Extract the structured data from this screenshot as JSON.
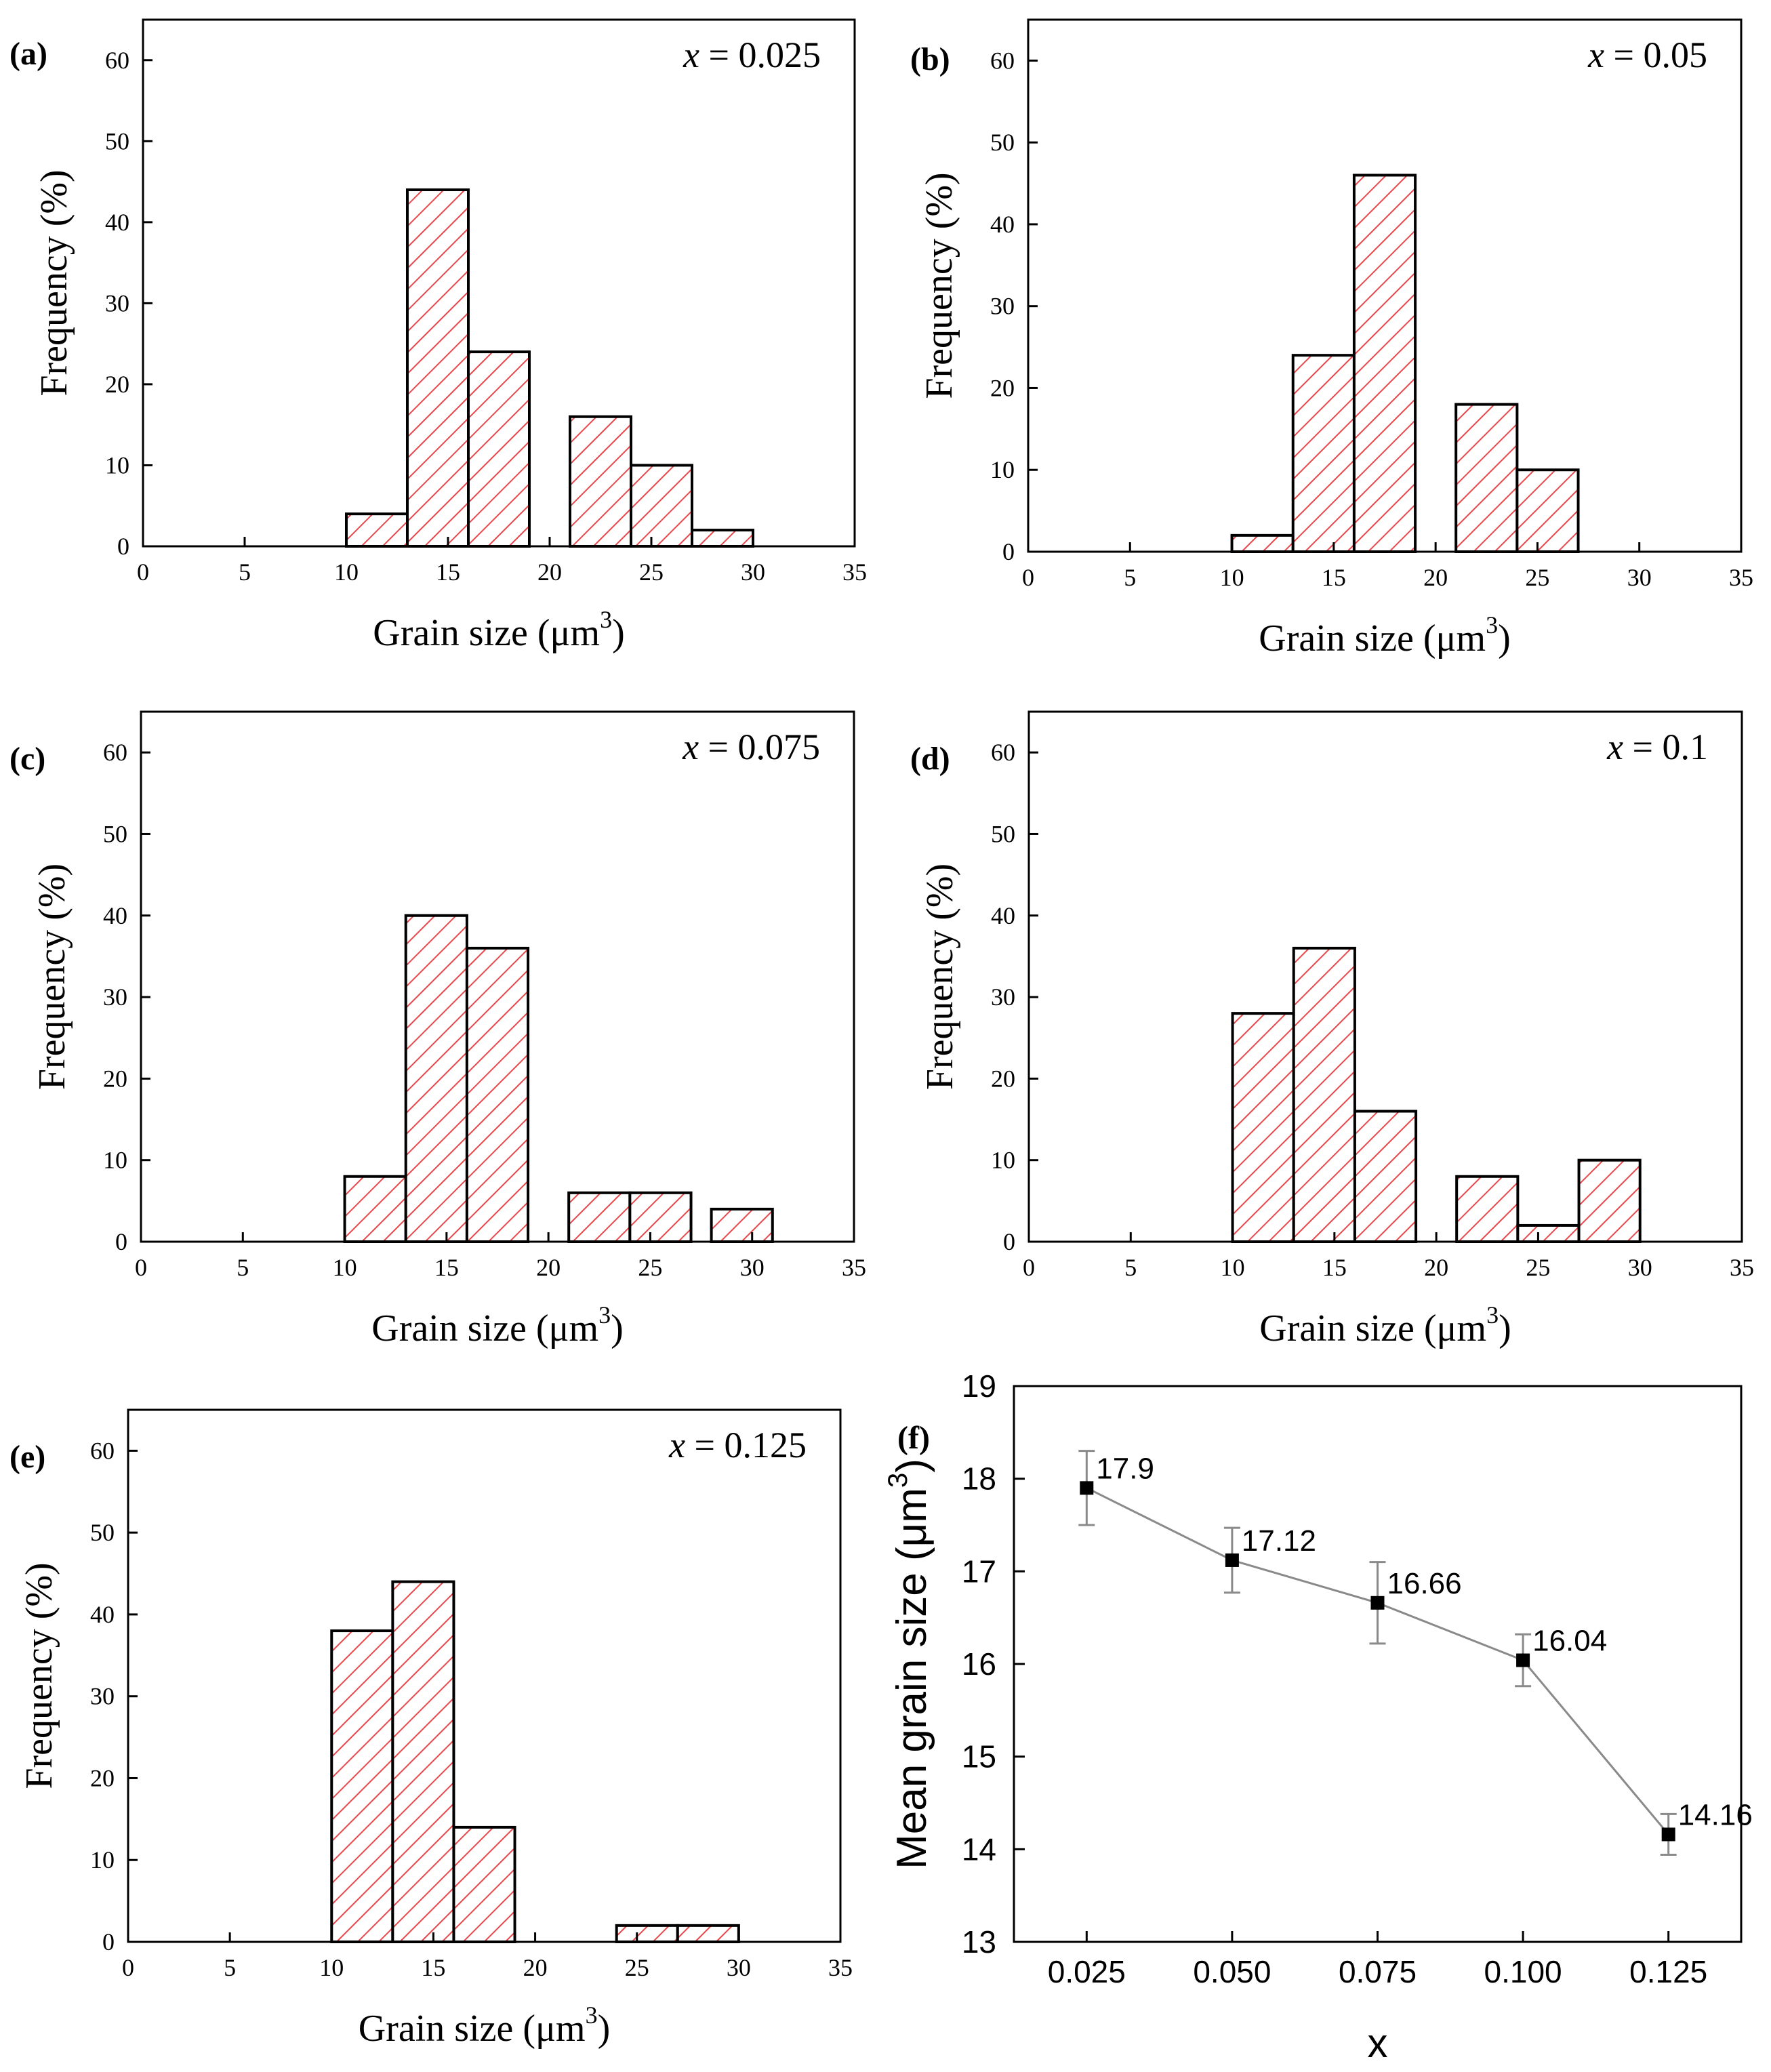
{
  "colors": {
    "bar_edge": "#000000",
    "hatch": "#e8474c",
    "axis": "#000000",
    "line": "#8a8a8a",
    "marker": "#000000"
  },
  "histogram_common": {
    "xlabel_prefix": "Grain size (",
    "xlabel_unit": "μm",
    "xlabel_sup": "3",
    "xlabel_suffix": ")",
    "ylabel": "Frequency (%)"
  },
  "chart_data": [
    {
      "panel": "(a)",
      "type": "bar",
      "annotation_var": "x",
      "annotation_rest": " = 0.025",
      "xlim": [
        0,
        35
      ],
      "ylim": [
        0,
        65
      ],
      "x_ticks": [
        0,
        5,
        10,
        15,
        20,
        25,
        30,
        35
      ],
      "y_ticks": [
        0,
        10,
        20,
        30,
        40,
        50,
        60
      ],
      "bins": [
        {
          "x0": 10,
          "x1": 13,
          "value": 4
        },
        {
          "x0": 13,
          "x1": 16,
          "value": 44
        },
        {
          "x0": 16,
          "x1": 19,
          "value": 24
        },
        {
          "x0": 21,
          "x1": 24,
          "value": 16
        },
        {
          "x0": 24,
          "x1": 27,
          "value": 10
        },
        {
          "x0": 27,
          "x1": 30,
          "value": 2
        }
      ]
    },
    {
      "panel": "(b)",
      "type": "bar",
      "annotation_var": "x",
      "annotation_rest": " = 0.05",
      "xlim": [
        0,
        35
      ],
      "ylim": [
        0,
        65
      ],
      "x_ticks": [
        0,
        5,
        10,
        15,
        20,
        25,
        30,
        35
      ],
      "y_ticks": [
        0,
        10,
        20,
        30,
        40,
        50,
        60
      ],
      "bins": [
        {
          "x0": 10,
          "x1": 13,
          "value": 2
        },
        {
          "x0": 13,
          "x1": 16,
          "value": 24
        },
        {
          "x0": 16,
          "x1": 19,
          "value": 46
        },
        {
          "x0": 21,
          "x1": 24,
          "value": 18
        },
        {
          "x0": 24,
          "x1": 27,
          "value": 10
        }
      ]
    },
    {
      "panel": "(c)",
      "type": "bar",
      "annotation_var": "x",
      "annotation_rest": " = 0.075",
      "xlim": [
        0,
        35
      ],
      "ylim": [
        0,
        65
      ],
      "x_ticks": [
        0,
        5,
        10,
        15,
        20,
        25,
        30,
        35
      ],
      "y_ticks": [
        0,
        10,
        20,
        30,
        40,
        50,
        60
      ],
      "bins": [
        {
          "x0": 10,
          "x1": 13,
          "value": 8
        },
        {
          "x0": 13,
          "x1": 16,
          "value": 40
        },
        {
          "x0": 16,
          "x1": 19,
          "value": 36
        },
        {
          "x0": 21,
          "x1": 24,
          "value": 6
        },
        {
          "x0": 24,
          "x1": 27,
          "value": 6
        },
        {
          "x0": 28,
          "x1": 31,
          "value": 4
        }
      ]
    },
    {
      "panel": "(d)",
      "type": "bar",
      "annotation_var": "x",
      "annotation_rest": " = 0.1",
      "xlim": [
        0,
        35
      ],
      "ylim": [
        0,
        65
      ],
      "x_ticks": [
        0,
        5,
        10,
        15,
        20,
        25,
        30,
        35
      ],
      "y_ticks": [
        0,
        10,
        20,
        30,
        40,
        50,
        60
      ],
      "bins": [
        {
          "x0": 10,
          "x1": 13,
          "value": 28
        },
        {
          "x0": 13,
          "x1": 16,
          "value": 36
        },
        {
          "x0": 16,
          "x1": 19,
          "value": 16
        },
        {
          "x0": 21,
          "x1": 24,
          "value": 8
        },
        {
          "x0": 24,
          "x1": 27,
          "value": 2
        },
        {
          "x0": 27,
          "x1": 30,
          "value": 10
        }
      ]
    },
    {
      "panel": "(e)",
      "type": "bar",
      "annotation_var": "x",
      "annotation_rest": " = 0.125",
      "xlim": [
        0,
        35
      ],
      "ylim": [
        0,
        65
      ],
      "x_ticks": [
        0,
        5,
        10,
        15,
        20,
        25,
        30,
        35
      ],
      "y_ticks": [
        0,
        10,
        20,
        30,
        40,
        50,
        60
      ],
      "bins": [
        {
          "x0": 10,
          "x1": 13,
          "value": 38
        },
        {
          "x0": 13,
          "x1": 16,
          "value": 44
        },
        {
          "x0": 16,
          "x1": 19,
          "value": 14
        },
        {
          "x0": 24,
          "x1": 27,
          "value": 2
        },
        {
          "x0": 27,
          "x1": 30,
          "value": 2
        }
      ]
    },
    {
      "panel": "(f)",
      "type": "line",
      "xlabel": "x",
      "ylabel_main": "Mean grain size (μm",
      "ylabel_sup": "3",
      "ylabel_suffix": ")",
      "xlim": [
        0.0125,
        0.1375
      ],
      "ylim": [
        13,
        19
      ],
      "x_ticks": [
        "0.025",
        "0.050",
        "0.075",
        "0.100",
        "0.125"
      ],
      "y_ticks": [
        13,
        14,
        15,
        16,
        17,
        18,
        19
      ],
      "points": [
        {
          "x": 0.025,
          "y": 17.9,
          "err": 0.4,
          "label": "17.9"
        },
        {
          "x": 0.05,
          "y": 17.12,
          "err": 0.35,
          "label": "17.12"
        },
        {
          "x": 0.075,
          "y": 16.66,
          "err": 0.44,
          "label": "16.66"
        },
        {
          "x": 0.1,
          "y": 16.04,
          "err": 0.28,
          "label": "16.04"
        },
        {
          "x": 0.125,
          "y": 14.16,
          "err": 0.22,
          "label": "14.16"
        }
      ]
    }
  ]
}
